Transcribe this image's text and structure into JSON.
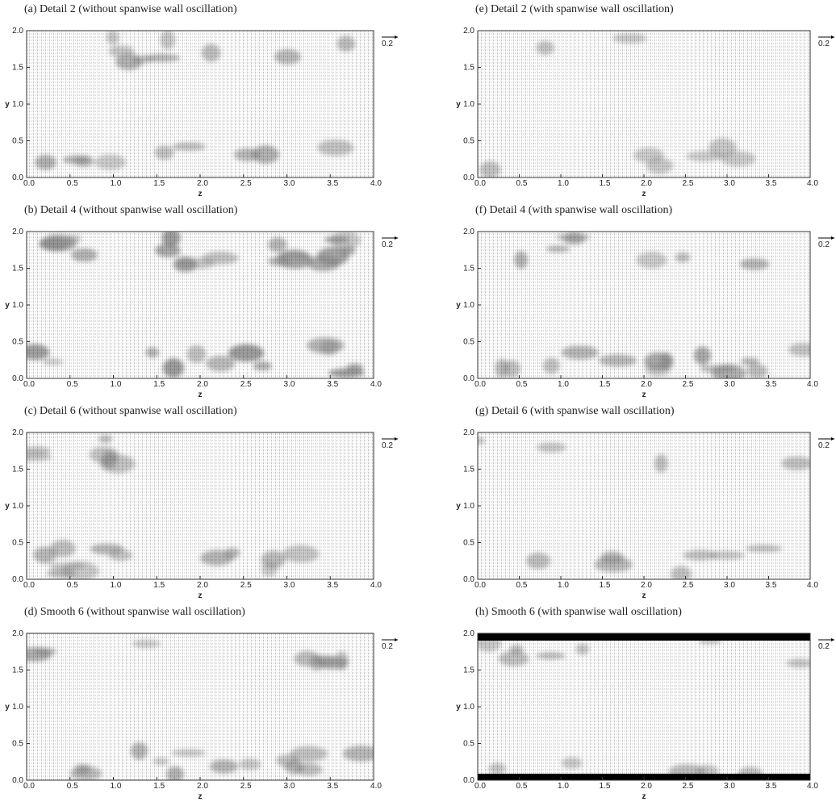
{
  "chart_data": [
    {
      "type": "vector-field",
      "title": "(a) Detail 2 (without spanwise wall oscillation)",
      "xlabel": "z",
      "ylabel": "y",
      "xlim": [
        0,
        4
      ],
      "ylim": [
        0,
        2
      ],
      "xticks": [
        {
          "value": 0,
          "label": "0.0"
        },
        0.5,
        {
          "value": 1,
          "label": "1.0"
        },
        1.5,
        {
          "value": 2,
          "label": "2.0"
        },
        2.5,
        {
          "value": 3,
          "label": "3.0"
        },
        3.5,
        {
          "value": 4,
          "label": "4.0"
        }
      ],
      "yticks": [
        {
          "value": 0,
          "label": "0.0"
        },
        0.5,
        {
          "value": 1,
          "label": "1.0"
        },
        1.5,
        {
          "value": 2,
          "label": "2.0"
        }
      ],
      "reference_vector": 0.2
    },
    {
      "type": "vector-field",
      "title": "(b) Detail 4 (without spanwise wall oscillation)",
      "xlabel": "z",
      "ylabel": "y",
      "xlim": [
        0,
        4
      ],
      "ylim": [
        0,
        2
      ],
      "xticks": [
        {
          "value": 0,
          "label": "0.0"
        },
        0.5,
        {
          "value": 1,
          "label": "1.0"
        },
        1.5,
        {
          "value": 2,
          "label": "2.0"
        },
        2.5,
        {
          "value": 3,
          "label": "3.0"
        },
        3.5,
        {
          "value": 4,
          "label": "4.0"
        }
      ],
      "yticks": [
        {
          "value": 0,
          "label": "0.0"
        },
        0.5,
        {
          "value": 1,
          "label": "1.0"
        },
        1.5,
        {
          "value": 2,
          "label": "2.0"
        }
      ],
      "reference_vector": 0.2
    },
    {
      "type": "vector-field",
      "title": "(c) Detail 6 (without spanwise wall oscillation)",
      "xlabel": "z",
      "ylabel": "y",
      "xlim": [
        0,
        4
      ],
      "ylim": [
        0,
        2
      ],
      "xticks": [
        {
          "value": 0,
          "label": "0.0"
        },
        0.5,
        {
          "value": 1,
          "label": "1.0"
        },
        1.5,
        {
          "value": 2,
          "label": "2.0"
        },
        2.5,
        {
          "value": 3,
          "label": "3.0"
        },
        3.5,
        {
          "value": 4,
          "label": "4.0"
        }
      ],
      "yticks": [
        {
          "value": 0,
          "label": "0.0"
        },
        0.5,
        {
          "value": 1,
          "label": "1.0"
        },
        1.5,
        {
          "value": 2,
          "label": "2.0"
        }
      ],
      "reference_vector": 0.2
    },
    {
      "type": "vector-field",
      "title": "(d) Smooth 6 (without spanwise wall oscillation)",
      "xlabel": "z",
      "ylabel": "y",
      "xlim": [
        0,
        4
      ],
      "ylim": [
        0,
        2
      ],
      "xticks": [
        {
          "value": 0,
          "label": "0.0"
        },
        0.5,
        {
          "value": 1,
          "label": "1.0"
        },
        1.5,
        {
          "value": 2,
          "label": "2.0"
        },
        2.5,
        {
          "value": 3,
          "label": "3.0"
        },
        3.5,
        {
          "value": 4,
          "label": "4.0"
        }
      ],
      "yticks": [
        {
          "value": 0,
          "label": "0.0"
        },
        0.5,
        {
          "value": 1,
          "label": "1.0"
        },
        1.5,
        {
          "value": 2,
          "label": "2.0"
        }
      ],
      "reference_vector": 0.2
    },
    {
      "type": "vector-field",
      "title": "(e) Detail 2 (with spanwise wall oscillation)",
      "xlabel": "z",
      "ylabel": "y",
      "xlim": [
        0,
        4
      ],
      "ylim": [
        0,
        2
      ],
      "xticks": [
        {
          "value": 0,
          "label": "0.0"
        },
        0.5,
        {
          "value": 1,
          "label": "1.0"
        },
        1.5,
        {
          "value": 2,
          "label": "2.0"
        },
        2.5,
        {
          "value": 3,
          "label": "3.0"
        },
        3.5,
        {
          "value": 4,
          "label": "4.0"
        }
      ],
      "yticks": [
        {
          "value": 0,
          "label": "0.0"
        },
        0.5,
        {
          "value": 1,
          "label": "1.0"
        },
        1.5,
        {
          "value": 2,
          "label": "2.0"
        }
      ],
      "reference_vector": 0.2
    },
    {
      "type": "vector-field",
      "title": "(f) Detail 4 (with spanwise wall oscillation)",
      "xlabel": "z",
      "ylabel": "y",
      "xlim": [
        0,
        4
      ],
      "ylim": [
        0,
        2
      ],
      "xticks": [
        {
          "value": 0,
          "label": "0.0"
        },
        0.5,
        {
          "value": 1,
          "label": "1.0"
        },
        1.5,
        {
          "value": 2,
          "label": "2.0"
        },
        2.5,
        {
          "value": 3,
          "label": "3.0"
        },
        3.5,
        {
          "value": 4,
          "label": "4.0"
        }
      ],
      "yticks": [
        {
          "value": 0,
          "label": "0.0"
        },
        0.5,
        {
          "value": 1,
          "label": "1.0"
        },
        1.5,
        {
          "value": 2,
          "label": "2.0"
        }
      ],
      "reference_vector": 0.2
    },
    {
      "type": "vector-field",
      "title": "(g) Detail 6 (with spanwise wall oscillation)",
      "xlabel": "z",
      "ylabel": "y",
      "xlim": [
        0,
        4
      ],
      "ylim": [
        0,
        2
      ],
      "xticks": [
        {
          "value": 0,
          "label": "0.0"
        },
        0.5,
        {
          "value": 1,
          "label": "1.0"
        },
        1.5,
        {
          "value": 2,
          "label": "2.0"
        },
        2.5,
        {
          "value": 3,
          "label": "3.0"
        },
        3.5,
        {
          "value": 4,
          "label": "4.0"
        }
      ],
      "yticks": [
        {
          "value": 0,
          "label": "0.0"
        },
        0.5,
        {
          "value": 1,
          "label": "1.0"
        },
        1.5,
        {
          "value": 2,
          "label": "2.0"
        }
      ],
      "reference_vector": 0.2
    },
    {
      "type": "vector-field",
      "title": "(h) Smooth 6 (with spanwise wall oscillation)",
      "xlabel": "z",
      "ylabel": "y",
      "xlim": [
        0,
        4
      ],
      "ylim": [
        0,
        2
      ],
      "xticks": [
        {
          "value": 0,
          "label": "0.0"
        },
        0.5,
        {
          "value": 1,
          "label": "1.0"
        },
        1.5,
        {
          "value": 2,
          "label": "2.0"
        },
        2.5,
        {
          "value": 3,
          "label": "3.0"
        },
        3.5,
        {
          "value": 4,
          "label": "4.0"
        }
      ],
      "yticks": [
        {
          "value": 0,
          "label": "0.0"
        },
        0.5,
        {
          "value": 1,
          "label": "1.0"
        },
        1.5,
        {
          "value": 2,
          "label": "2.0"
        }
      ],
      "reference_vector": 0.2
    }
  ]
}
